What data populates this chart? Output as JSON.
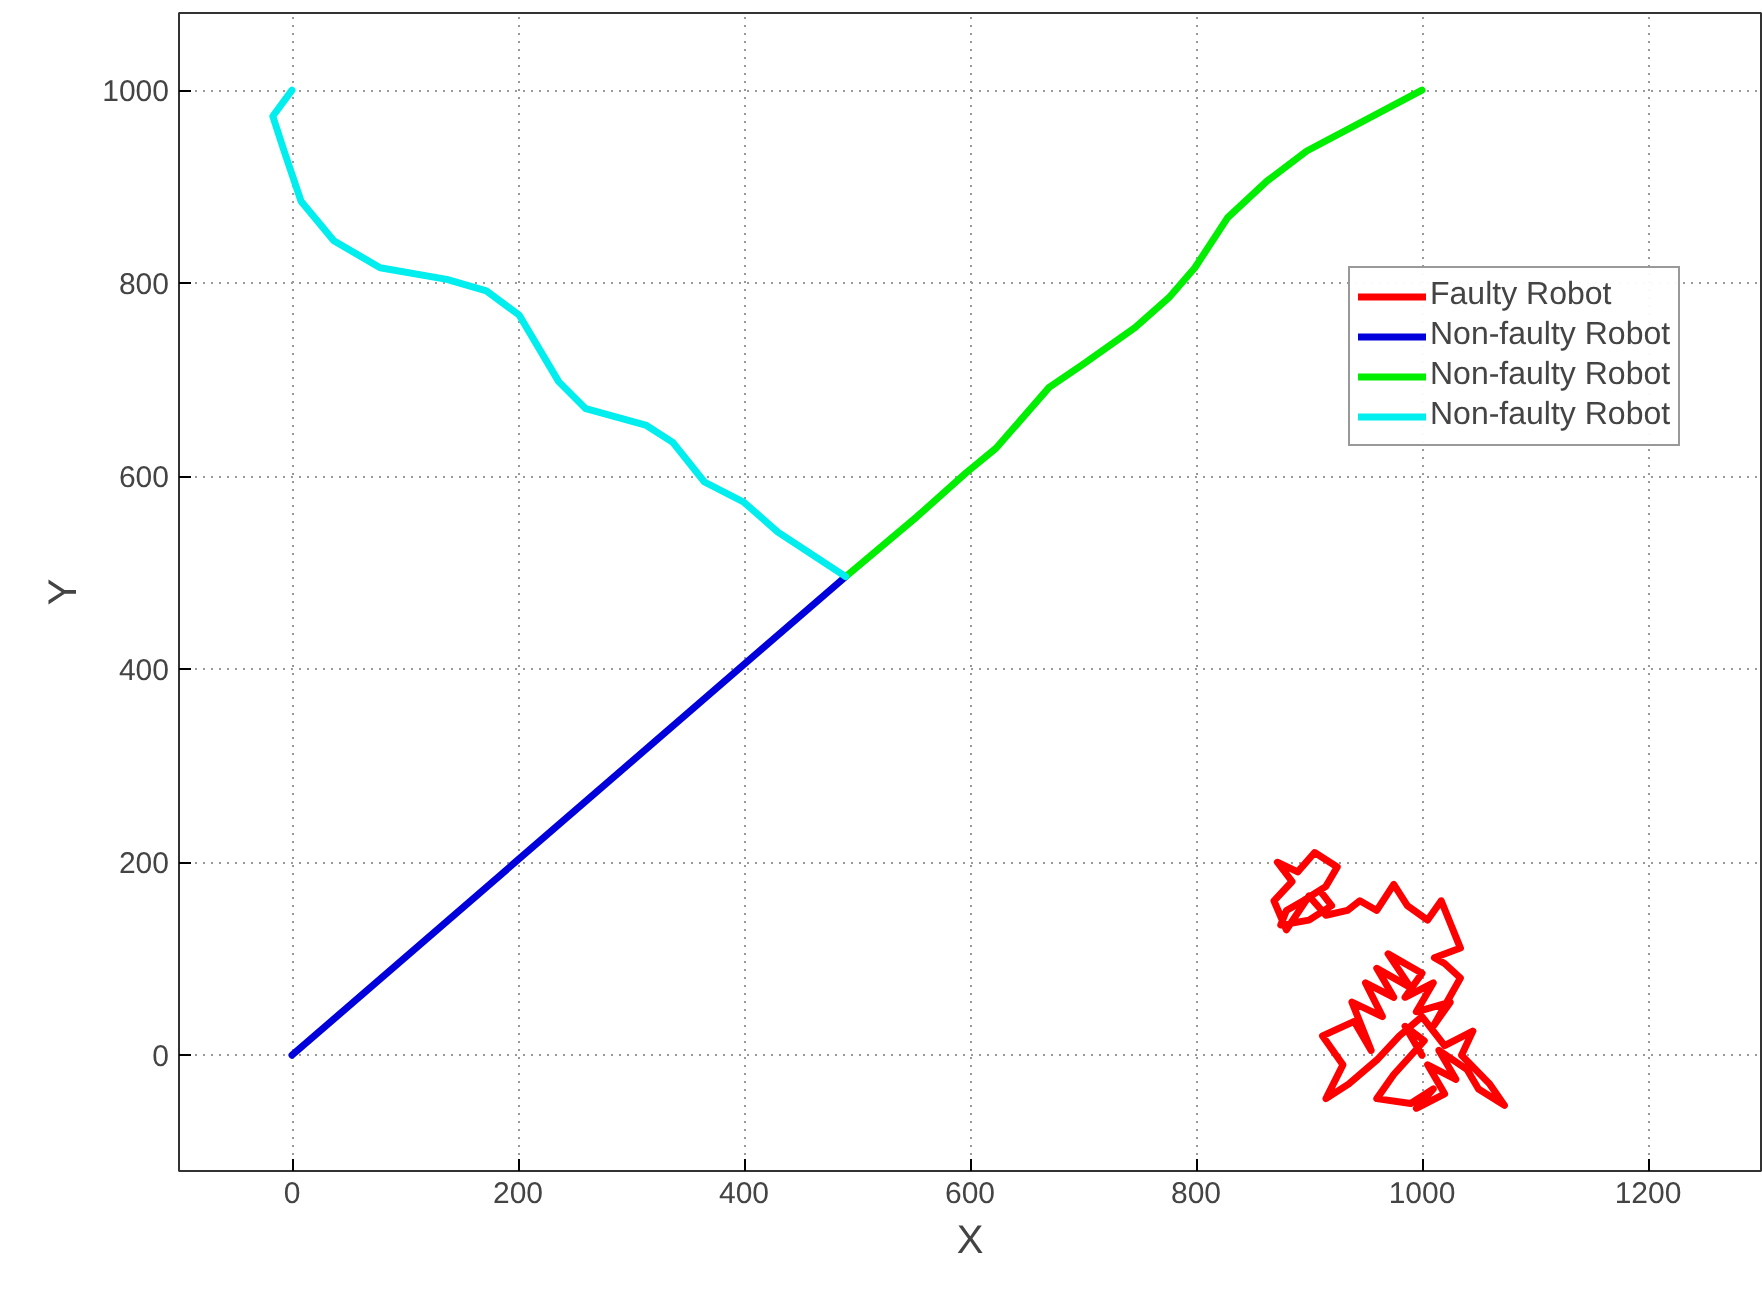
{
  "chart_data": {
    "type": "line",
    "xlabel": "X",
    "ylabel": "Y",
    "xlim": [
      -100,
      1300
    ],
    "ylim": [
      -120,
      1080
    ],
    "xticks": [
      0,
      200,
      400,
      600,
      800,
      1000,
      1200
    ],
    "yticks": [
      0,
      200,
      400,
      600,
      800,
      1000
    ],
    "grid": true,
    "legend": "top right",
    "line_style": "solid",
    "marker": "none",
    "series": [
      {
        "name": "Faulty Robot",
        "color": "#ff0000",
        "x": [
          1000,
          985,
          1002,
          975,
          960,
          990,
          1010,
          995,
          1020,
          1005,
          1030,
          1015,
          1040,
          1050,
          1073,
          1060,
          1035,
          1045,
          1020,
          1000,
          980,
          960,
          935,
          915,
          930,
          912,
          940,
          955,
          938,
          965,
          950,
          975,
          960,
          990,
          970,
          1000,
          985,
          1010,
          995,
          1025,
          1010,
          1034,
          1020,
          1011,
          1034,
          1017,
          1005,
          987,
          975,
          960,
          945,
          934,
          915,
          900,
          880,
          869,
          885,
          872,
          890,
          905,
          925,
          915,
          895,
          880,
          875,
          900,
          920,
          910
        ],
        "values": [
          0,
          30,
          15,
          -20,
          -45,
          -50,
          -35,
          -55,
          -40,
          -10,
          -25,
          5,
          -15,
          -35,
          -52,
          -30,
          0,
          25,
          10,
          40,
          20,
          -5,
          -30,
          -45,
          -10,
          20,
          35,
          5,
          55,
          40,
          75,
          60,
          90,
          70,
          105,
          85,
          60,
          75,
          45,
          55,
          30,
          80,
          95,
          101,
          111,
          160,
          140,
          155,
          177,
          150,
          160,
          150,
          145,
          165,
          130,
          160,
          180,
          200,
          190,
          210,
          195,
          175,
          160,
          150,
          135,
          140,
          155,
          170
        ]
      },
      {
        "name": "Non-faulty Robot",
        "color": "#0000dd",
        "x": [
          0,
          490
        ],
        "values": [
          0,
          496
        ]
      },
      {
        "name": "Non-faulty Robot",
        "color": "#00ee00",
        "x": [
          490,
          553,
          597,
          623,
          670,
          699,
          746,
          776,
          799,
          828,
          863,
          898,
          1000
        ],
        "values": [
          496,
          558,
          604,
          629,
          692,
          715,
          754,
          785,
          816,
          868,
          906,
          937,
          1000
        ]
      },
      {
        "name": "Non-faulty Robot",
        "color": "#00eeee",
        "x": [
          0,
          -17,
          -7,
          8,
          37,
          78,
          137,
          172,
          201,
          236,
          260,
          313,
          337,
          365,
          400,
          430,
          490
        ],
        "values": [
          1000,
          973,
          937,
          885,
          844,
          816,
          804,
          792,
          767,
          698,
          670,
          653,
          635,
          594,
          573,
          542,
          496
        ]
      }
    ]
  }
}
